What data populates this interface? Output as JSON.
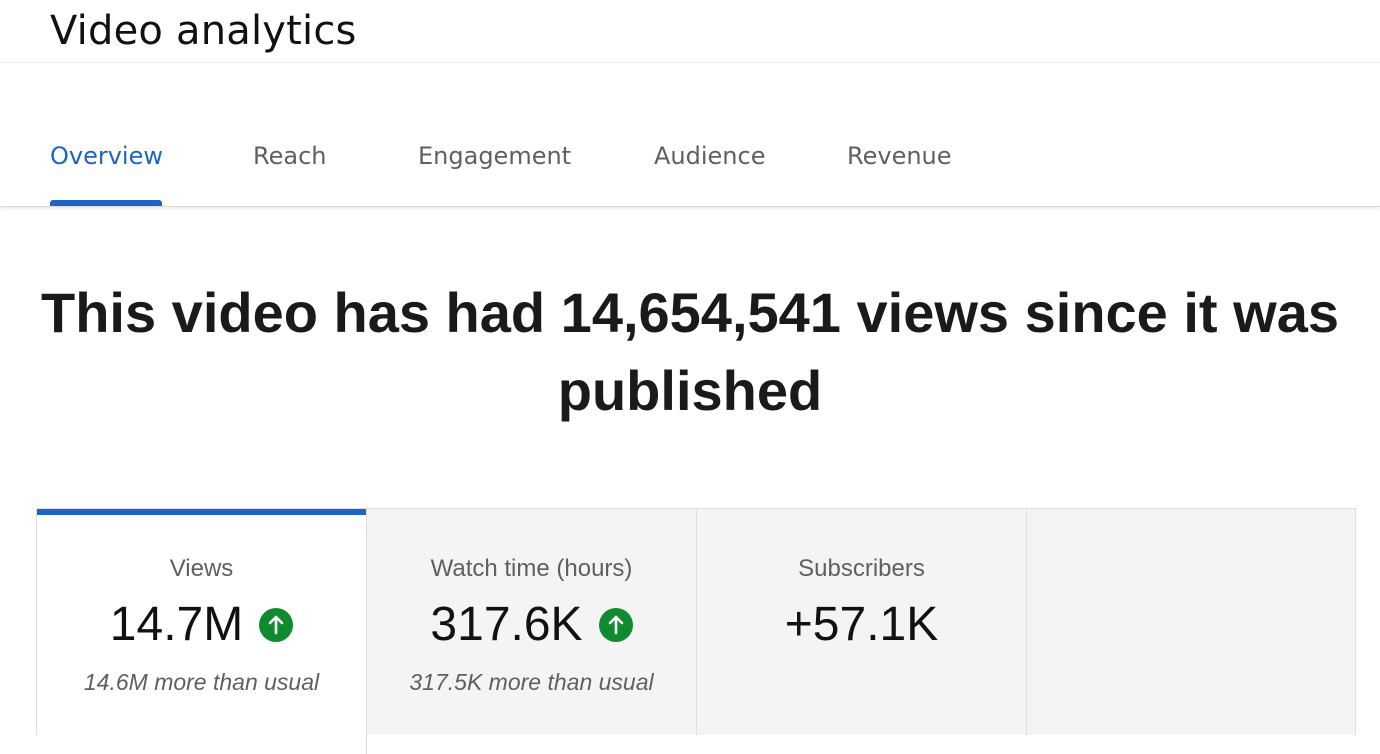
{
  "header": {
    "title": "Video analytics"
  },
  "tabs": [
    {
      "label": "Overview",
      "active": true
    },
    {
      "label": "Reach",
      "active": false
    },
    {
      "label": "Engagement",
      "active": false
    },
    {
      "label": "Audience",
      "active": false
    },
    {
      "label": "Revenue",
      "active": false
    }
  ],
  "headline": "This video has had 14,654,541 views since it was published",
  "metrics": [
    {
      "label": "Views",
      "value": "14.7M",
      "trend_icon": "arrow-up-circle-icon",
      "comparison": "14.6M more than usual",
      "selected": true
    },
    {
      "label": "Watch time (hours)",
      "value": "317.6K",
      "trend_icon": "arrow-up-circle-icon",
      "comparison": "317.5K more than usual",
      "selected": false
    },
    {
      "label": "Subscribers",
      "value": "+57.1K",
      "trend_icon": "",
      "comparison": "",
      "selected": false
    },
    {
      "label": "",
      "value": "",
      "trend_icon": "",
      "comparison": "",
      "selected": false
    }
  ],
  "colors": {
    "accent": "#1e64c8",
    "positive": "#108a2e",
    "card_background": "#f4f4f4"
  }
}
